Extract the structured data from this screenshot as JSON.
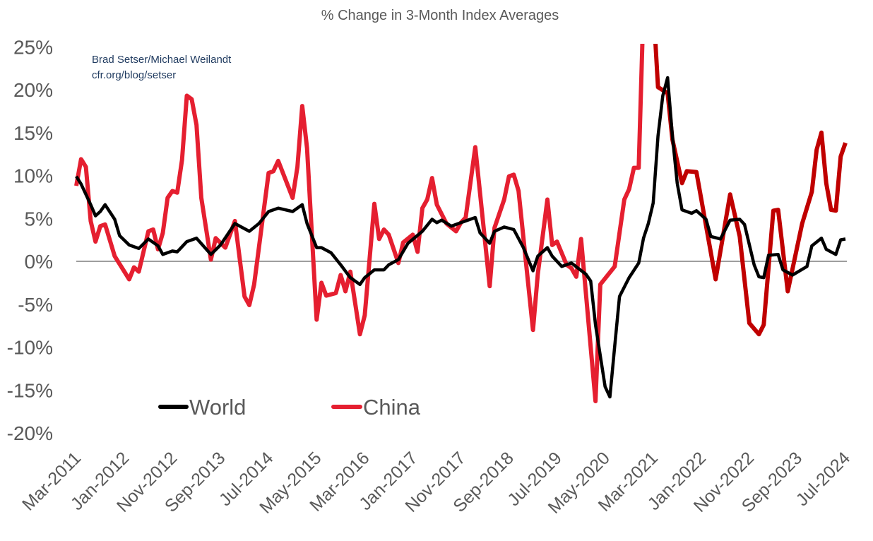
{
  "chart_data": {
    "type": "line",
    "title": "% Change in 3-Month Index Averages",
    "attribution": [
      "Brad Setser/Michael Weilandt",
      "cfr.org/blog/setser"
    ],
    "xlabel": "",
    "ylabel": "",
    "x_range": [
      "2011-03",
      "2024-07"
    ],
    "ylim": [
      -20,
      25
    ],
    "y_ticks": [
      -20,
      -15,
      -10,
      -5,
      0,
      5,
      10,
      15,
      20,
      25
    ],
    "y_tick_labels": [
      "-20%",
      "-15%",
      "-10%",
      "-5%",
      "0%",
      "5%",
      "10%",
      "15%",
      "20%",
      "25%"
    ],
    "x_ticks": [
      "2011-03",
      "2012-01",
      "2012-11",
      "2013-09",
      "2014-07",
      "2015-05",
      "2016-03",
      "2017-01",
      "2017-11",
      "2018-09",
      "2019-07",
      "2020-05",
      "2021-03",
      "2022-01",
      "2022-11",
      "2023-09",
      "2024-07"
    ],
    "x_tick_labels": [
      "Mar-2011",
      "Jan-2012",
      "Nov-2012",
      "Sep-2013",
      "Jul-2014",
      "May-2015",
      "Mar-2016",
      "Jan-2017",
      "Nov-2017",
      "Sep-2018",
      "Jul-2019",
      "May-2020",
      "Mar-2021",
      "Jan-2022",
      "Nov-2022",
      "Sep-2023",
      "Jul-2024"
    ],
    "grid": false,
    "zero_line": true,
    "legend_position": "bottom-left",
    "series": [
      {
        "name": "World",
        "color": "#000000",
        "points": [
          [
            "2011-03",
            9.9
          ],
          [
            "2011-04",
            9.0
          ],
          [
            "2011-06",
            6.6
          ],
          [
            "2011-07",
            5.3
          ],
          [
            "2011-08",
            5.8
          ],
          [
            "2011-09",
            6.6
          ],
          [
            "2011-11",
            4.9
          ],
          [
            "2011-12",
            3.0
          ],
          [
            "2012-02",
            1.9
          ],
          [
            "2012-04",
            1.5
          ],
          [
            "2012-06",
            2.6
          ],
          [
            "2012-08",
            1.8
          ],
          [
            "2012-09",
            0.8
          ],
          [
            "2012-11",
            1.2
          ],
          [
            "2012-12",
            1.1
          ],
          [
            "2013-02",
            2.3
          ],
          [
            "2013-04",
            2.7
          ],
          [
            "2013-07",
            0.8
          ],
          [
            "2013-09",
            1.9
          ],
          [
            "2013-12",
            4.4
          ],
          [
            "2014-03",
            3.5
          ],
          [
            "2014-05",
            4.4
          ],
          [
            "2014-07",
            5.8
          ],
          [
            "2014-09",
            6.2
          ],
          [
            "2014-12",
            5.8
          ],
          [
            "2015-02",
            6.6
          ],
          [
            "2015-03",
            4.4
          ],
          [
            "2015-05",
            1.6
          ],
          [
            "2015-06",
            1.6
          ],
          [
            "2015-08",
            1.0
          ],
          [
            "2015-10",
            -0.4
          ],
          [
            "2015-12",
            -1.9
          ],
          [
            "2016-02",
            -2.7
          ],
          [
            "2016-03",
            -1.9
          ],
          [
            "2016-05",
            -1.0
          ],
          [
            "2016-07",
            -1.0
          ],
          [
            "2016-08",
            -0.4
          ],
          [
            "2016-10",
            0.2
          ],
          [
            "2016-12",
            2.1
          ],
          [
            "2017-03",
            3.5
          ],
          [
            "2017-05",
            4.9
          ],
          [
            "2017-06",
            4.5
          ],
          [
            "2017-07",
            4.8
          ],
          [
            "2017-09",
            4.1
          ],
          [
            "2017-11",
            4.5
          ],
          [
            "2018-02",
            5.1
          ],
          [
            "2018-03",
            3.3
          ],
          [
            "2018-05",
            2.1
          ],
          [
            "2018-06",
            3.5
          ],
          [
            "2018-08",
            4.0
          ],
          [
            "2018-10",
            3.7
          ],
          [
            "2018-12",
            1.6
          ],
          [
            "2019-02",
            -1.1
          ],
          [
            "2019-03",
            0.6
          ],
          [
            "2019-05",
            1.6
          ],
          [
            "2019-06",
            0.6
          ],
          [
            "2019-08",
            -0.6
          ],
          [
            "2019-10",
            -0.2
          ],
          [
            "2020-01",
            -1.5
          ],
          [
            "2020-02",
            -2.3
          ],
          [
            "2020-03",
            -7.4
          ],
          [
            "2020-05",
            -14.6
          ],
          [
            "2020-06",
            -15.8
          ],
          [
            "2020-07",
            -9.9
          ],
          [
            "2020-08",
            -4.1
          ],
          [
            "2020-10",
            -1.9
          ],
          [
            "2020-12",
            -0.2
          ],
          [
            "2021-01",
            2.7
          ],
          [
            "2021-02",
            4.4
          ],
          [
            "2021-03",
            6.8
          ],
          [
            "2021-04",
            14.6
          ],
          [
            "2021-05",
            19.3
          ],
          [
            "2021-06",
            21.4
          ],
          [
            "2021-07",
            14.6
          ],
          [
            "2021-08",
            9.1
          ],
          [
            "2021-09",
            6.0
          ],
          [
            "2021-11",
            5.6
          ],
          [
            "2021-12",
            5.9
          ],
          [
            "2022-02",
            4.9
          ],
          [
            "2022-03",
            2.9
          ],
          [
            "2022-05",
            2.6
          ],
          [
            "2022-07",
            4.8
          ],
          [
            "2022-09",
            4.9
          ],
          [
            "2022-10",
            4.3
          ],
          [
            "2022-12",
            -0.4
          ],
          [
            "2023-01",
            -1.8
          ],
          [
            "2023-02",
            -1.9
          ],
          [
            "2023-03",
            0.7
          ],
          [
            "2023-05",
            0.8
          ],
          [
            "2023-06",
            -1.0
          ],
          [
            "2023-08",
            -1.6
          ],
          [
            "2023-11",
            -0.6
          ],
          [
            "2023-12",
            1.8
          ],
          [
            "2024-02",
            2.7
          ],
          [
            "2024-03",
            1.4
          ],
          [
            "2024-05",
            0.8
          ],
          [
            "2024-06",
            2.5
          ],
          [
            "2024-07",
            2.6
          ]
        ]
      },
      {
        "name": "China",
        "color": "#e51f30",
        "recent_color": "#c00000",
        "recent_from": "2021-03",
        "points": [
          [
            "2011-03",
            8.8
          ],
          [
            "2011-04",
            11.9
          ],
          [
            "2011-05",
            11.0
          ],
          [
            "2011-06",
            4.7
          ],
          [
            "2011-07",
            2.3
          ],
          [
            "2011-08",
            4.1
          ],
          [
            "2011-09",
            4.3
          ],
          [
            "2011-11",
            0.6
          ],
          [
            "2012-02",
            -2.1
          ],
          [
            "2012-03",
            -0.7
          ],
          [
            "2012-04",
            -1.2
          ],
          [
            "2012-06",
            3.5
          ],
          [
            "2012-07",
            3.7
          ],
          [
            "2012-08",
            1.4
          ],
          [
            "2012-09",
            3.3
          ],
          [
            "2012-10",
            7.4
          ],
          [
            "2012-11",
            8.2
          ],
          [
            "2012-12",
            8.0
          ],
          [
            "2013-01",
            11.8
          ],
          [
            "2013-02",
            19.3
          ],
          [
            "2013-03",
            18.9
          ],
          [
            "2013-04",
            15.9
          ],
          [
            "2013-05",
            7.4
          ],
          [
            "2013-07",
            0.2
          ],
          [
            "2013-08",
            2.7
          ],
          [
            "2013-10",
            1.6
          ],
          [
            "2013-12",
            4.7
          ],
          [
            "2014-02",
            -4.1
          ],
          [
            "2014-03",
            -5.1
          ],
          [
            "2014-04",
            -2.7
          ],
          [
            "2014-07",
            10.3
          ],
          [
            "2014-08",
            10.5
          ],
          [
            "2014-09",
            11.7
          ],
          [
            "2014-12",
            7.4
          ],
          [
            "2015-01",
            11.0
          ],
          [
            "2015-02",
            18.1
          ],
          [
            "2015-03",
            13.2
          ],
          [
            "2015-05",
            -6.8
          ],
          [
            "2015-06",
            -2.5
          ],
          [
            "2015-07",
            -4.0
          ],
          [
            "2015-09",
            -3.7
          ],
          [
            "2015-10",
            -1.6
          ],
          [
            "2015-11",
            -3.5
          ],
          [
            "2015-12",
            -1.2
          ],
          [
            "2016-02",
            -8.5
          ],
          [
            "2016-03",
            -6.3
          ],
          [
            "2016-05",
            6.7
          ],
          [
            "2016-06",
            2.6
          ],
          [
            "2016-07",
            3.7
          ],
          [
            "2016-08",
            3.1
          ],
          [
            "2016-10",
            -0.2
          ],
          [
            "2016-11",
            2.2
          ],
          [
            "2017-01",
            3.1
          ],
          [
            "2017-02",
            1.1
          ],
          [
            "2017-03",
            6.2
          ],
          [
            "2017-04",
            7.2
          ],
          [
            "2017-05",
            9.7
          ],
          [
            "2017-06",
            6.6
          ],
          [
            "2017-08",
            4.4
          ],
          [
            "2017-10",
            3.5
          ],
          [
            "2017-11",
            4.5
          ],
          [
            "2017-12",
            5.1
          ],
          [
            "2018-02",
            13.3
          ],
          [
            "2018-05",
            -2.9
          ],
          [
            "2018-06",
            3.9
          ],
          [
            "2018-08",
            7.2
          ],
          [
            "2018-09",
            9.9
          ],
          [
            "2018-10",
            10.1
          ],
          [
            "2018-11",
            8.2
          ],
          [
            "2019-02",
            -8.0
          ],
          [
            "2019-03",
            -1.5
          ],
          [
            "2019-05",
            7.2
          ],
          [
            "2019-06",
            1.9
          ],
          [
            "2019-07",
            2.3
          ],
          [
            "2019-09",
            -0.4
          ],
          [
            "2019-10",
            -0.8
          ],
          [
            "2019-11",
            -1.8
          ],
          [
            "2019-12",
            2.6
          ],
          [
            "2020-03",
            -16.3
          ],
          [
            "2020-04",
            -2.7
          ],
          [
            "2020-07",
            -0.6
          ],
          [
            "2020-09",
            7.2
          ],
          [
            "2020-10",
            8.4
          ],
          [
            "2020-11",
            10.9
          ],
          [
            "2020-12",
            10.9
          ],
          [
            "2021-01",
            30.0
          ],
          [
            "2021-03",
            30.0
          ],
          [
            "2021-04",
            20.3
          ],
          [
            "2021-06",
            19.6
          ],
          [
            "2021-07",
            14.2
          ],
          [
            "2021-09",
            9.1
          ],
          [
            "2021-10",
            10.5
          ],
          [
            "2021-12",
            10.4
          ],
          [
            "2022-04",
            -2.1
          ],
          [
            "2022-07",
            7.8
          ],
          [
            "2022-09",
            2.9
          ],
          [
            "2022-11",
            -7.2
          ],
          [
            "2023-01",
            -8.5
          ],
          [
            "2023-02",
            -7.4
          ],
          [
            "2023-04",
            5.9
          ],
          [
            "2023-05",
            6.0
          ],
          [
            "2023-07",
            -3.5
          ],
          [
            "2023-10",
            4.4
          ],
          [
            "2023-12",
            8.1
          ],
          [
            "2024-01",
            13.0
          ],
          [
            "2024-02",
            15.0
          ],
          [
            "2024-03",
            9.1
          ],
          [
            "2024-04",
            6.0
          ],
          [
            "2024-05",
            5.9
          ],
          [
            "2024-06",
            12.2
          ],
          [
            "2024-07",
            13.8
          ]
        ]
      }
    ]
  }
}
